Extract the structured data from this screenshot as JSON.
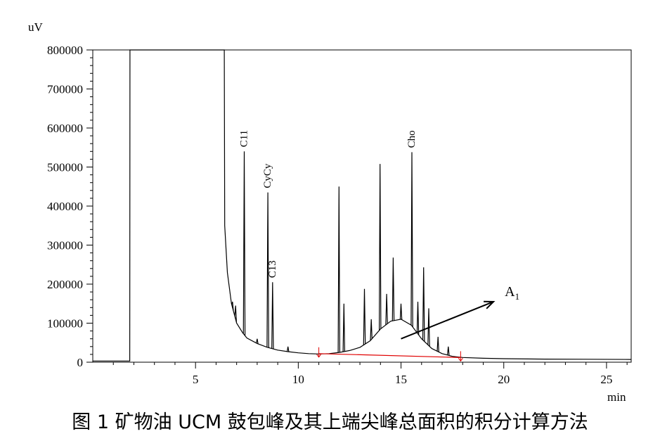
{
  "caption": "图 1 矿物油 UCM 鼓包峰及其上端尖峰总面积的积分计算方法",
  "chart_data": {
    "type": "line",
    "y_unit": "uV",
    "x_unit": "min",
    "xlim": [
      0,
      26.2
    ],
    "ylim": [
      0,
      800000
    ],
    "x_ticks": [
      5,
      10,
      15,
      20,
      25
    ],
    "y_ticks": [
      0,
      100000,
      200000,
      300000,
      400000,
      500000,
      600000,
      700000,
      800000
    ],
    "y_tick_labels": [
      "0",
      "100000",
      "200000",
      "300000",
      "400000",
      "500000",
      "600000",
      "700000",
      "800000"
    ],
    "line_color": "#000000",
    "baseline_color": "#e00000",
    "peak_labels": [
      {
        "text": "C11",
        "x": 7.37,
        "y": 540000
      },
      {
        "text": "CyCy",
        "x": 8.52,
        "y": 435000
      },
      {
        "text": "C13",
        "x": 8.75,
        "y": 205000
      },
      {
        "text": "Cho",
        "x": 15.53,
        "y": 538000
      }
    ],
    "annotation": {
      "text": "A",
      "subscript": "1",
      "arrow_from": [
        15.0,
        60000
      ],
      "arrow_to": [
        19.5,
        155000
      ]
    },
    "integration_baseline": {
      "from": [
        11.0,
        22000
      ],
      "to": [
        17.9,
        12000
      ]
    },
    "series": [
      {
        "x": [
          0.0,
          1.8,
          1.81,
          1.82,
          6.4,
          6.42,
          6.55,
          6.75,
          7.0,
          7.3,
          7.5,
          8.0,
          8.5,
          9.0,
          9.5,
          10.0,
          10.5,
          11.0,
          11.5,
          12.0,
          12.5,
          13.0,
          13.5,
          14.0,
          14.5,
          15.0,
          15.5,
          16.0,
          16.5,
          17.0,
          17.5,
          18.0,
          19.0,
          20.0,
          22.0,
          24.0,
          26.2
        ],
        "y": [
          3000,
          3000,
          800000,
          800000,
          800000,
          350000,
          230000,
          150000,
          100000,
          75000,
          62000,
          48000,
          38000,
          31000,
          27000,
          24000,
          22000,
          21000,
          22000,
          25000,
          30000,
          38000,
          55000,
          85000,
          105000,
          110000,
          95000,
          60000,
          35000,
          22000,
          15000,
          12000,
          10000,
          9000,
          8000,
          7500,
          7000
        ]
      }
    ],
    "peaks": [
      {
        "x": 6.8,
        "y": 155000
      },
      {
        "x": 6.95,
        "y": 145000
      },
      {
        "x": 7.37,
        "y": 540000
      },
      {
        "x": 8.0,
        "y": 60000
      },
      {
        "x": 8.52,
        "y": 435000
      },
      {
        "x": 8.75,
        "y": 205000
      },
      {
        "x": 9.5,
        "y": 40000
      },
      {
        "x": 11.98,
        "y": 450000
      },
      {
        "x": 12.22,
        "y": 150000
      },
      {
        "x": 13.22,
        "y": 188000
      },
      {
        "x": 13.55,
        "y": 110000
      },
      {
        "x": 13.98,
        "y": 508000
      },
      {
        "x": 14.3,
        "y": 175000
      },
      {
        "x": 14.62,
        "y": 268000
      },
      {
        "x": 15.0,
        "y": 150000
      },
      {
        "x": 15.53,
        "y": 538000
      },
      {
        "x": 15.82,
        "y": 155000
      },
      {
        "x": 16.1,
        "y": 243000
      },
      {
        "x": 16.35,
        "y": 138000
      },
      {
        "x": 16.8,
        "y": 65000
      },
      {
        "x": 17.3,
        "y": 40000
      }
    ]
  }
}
